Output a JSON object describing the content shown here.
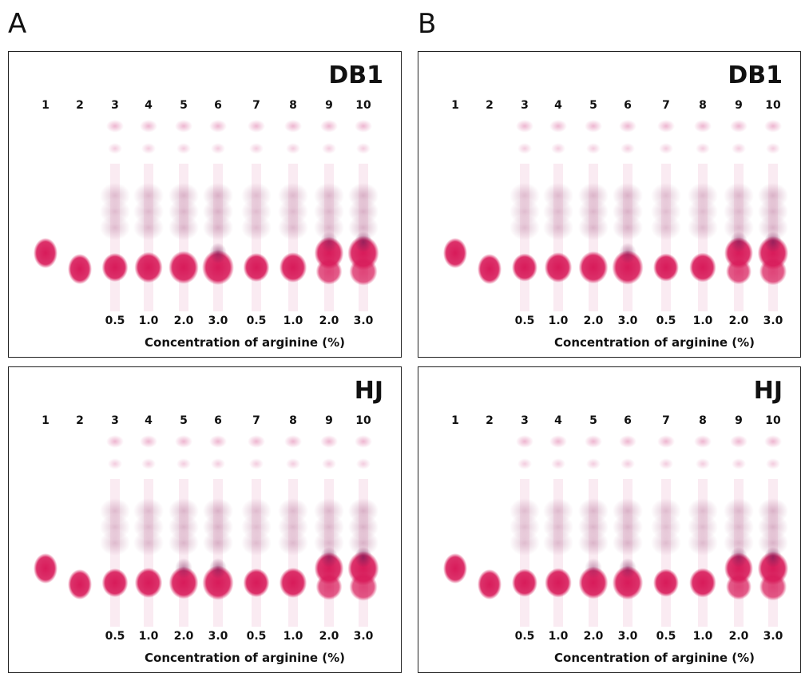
{
  "figure": {
    "section_labels": [
      "A",
      "B"
    ],
    "lane_numbers": [
      "1",
      "2",
      "3",
      "4",
      "5",
      "6",
      "7",
      "8",
      "9",
      "10"
    ],
    "concentration_ticks": [
      "0.5",
      "1.0",
      "2.0",
      "3.0",
      "0.5",
      "1.0",
      "2.0",
      "3.0"
    ],
    "axis_label": "Concentration of arginine (%)",
    "panels": [
      {
        "id": "A-top",
        "label": "DB1",
        "lane_intensity": [
          1,
          1,
          0.55,
          0.7,
          0.85,
          1,
          0.55,
          0.65,
          0.8,
          0.95
        ],
        "dark_core": [
          0,
          0,
          0,
          0,
          0,
          0.6,
          0,
          0,
          0.5,
          0.7
        ]
      },
      {
        "id": "B-top",
        "label": "DB1",
        "lane_intensity": [
          1,
          1,
          0.5,
          0.65,
          0.8,
          0.95,
          0.5,
          0.6,
          0.75,
          0.9
        ],
        "dark_core": [
          0,
          0,
          0,
          0,
          0,
          0.5,
          0,
          0,
          0.6,
          0.7
        ]
      },
      {
        "id": "A-bottom",
        "label": "HJ",
        "lane_intensity": [
          1,
          1,
          0.55,
          0.65,
          0.8,
          0.95,
          0.55,
          0.65,
          0.8,
          0.95
        ],
        "dark_core": [
          0,
          0,
          0,
          0,
          0.5,
          0.6,
          0,
          0,
          0.6,
          0.75
        ]
      },
      {
        "id": "B-bottom",
        "label": "HJ",
        "lane_intensity": [
          1,
          1,
          0.5,
          0.6,
          0.8,
          0.9,
          0.5,
          0.6,
          0.75,
          0.9
        ],
        "dark_core": [
          0,
          0,
          0,
          0,
          0.4,
          0.55,
          0,
          0,
          0.6,
          0.7
        ]
      }
    ]
  },
  "colors": {
    "spot": "#d81b5a",
    "spot_dark": "#7a1a55",
    "smear": "#b9789c",
    "faint": "#e9a3c4"
  }
}
